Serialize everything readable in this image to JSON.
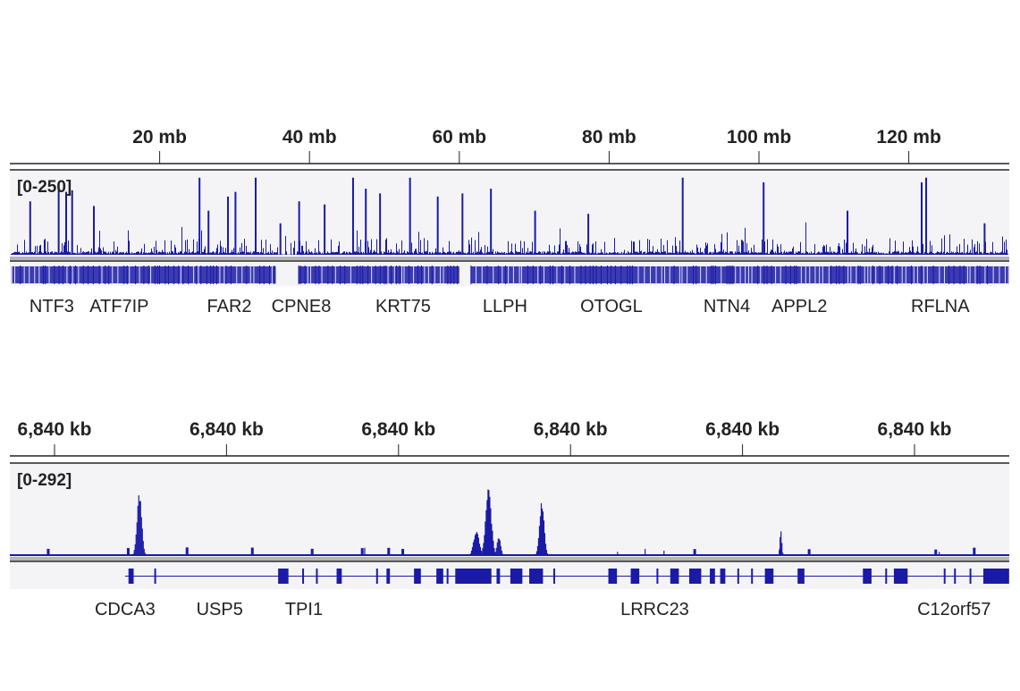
{
  "colors": {
    "signal": "#1a1aa6",
    "track_bg": "#f4f4f7",
    "separator": "#b4b4b4",
    "axis": "#222222"
  },
  "chart_data": [
    {
      "type": "area",
      "panel": "whole-chromosome",
      "x_unit": "mb",
      "xlim": [
        0,
        135
      ],
      "x_ticks": [
        {
          "value": 20,
          "label": "20 mb"
        },
        {
          "value": 40,
          "label": "40 mb"
        },
        {
          "value": 60,
          "label": "60 mb"
        },
        {
          "value": 80,
          "label": "80 mb"
        },
        {
          "value": 100,
          "label": "100 mb"
        },
        {
          "value": 120,
          "label": "120 mb"
        }
      ],
      "data_range_label": "[0-250]",
      "ylim": [
        0,
        250
      ],
      "peaks": [
        {
          "x": 2.6,
          "y": 170
        },
        {
          "x": 6.4,
          "y": 210
        },
        {
          "x": 7.4,
          "y": 200
        },
        {
          "x": 8.2,
          "y": 205
        },
        {
          "x": 11.1,
          "y": 155
        },
        {
          "x": 25.2,
          "y": 245
        },
        {
          "x": 26.4,
          "y": 140
        },
        {
          "x": 29.0,
          "y": 185
        },
        {
          "x": 30.0,
          "y": 200
        },
        {
          "x": 32.7,
          "y": 245
        },
        {
          "x": 36.0,
          "y": 100
        },
        {
          "x": 38.5,
          "y": 170
        },
        {
          "x": 41.9,
          "y": 160
        },
        {
          "x": 45.7,
          "y": 245
        },
        {
          "x": 47.4,
          "y": 210
        },
        {
          "x": 49.3,
          "y": 195
        },
        {
          "x": 53.3,
          "y": 245
        },
        {
          "x": 57.0,
          "y": 185
        },
        {
          "x": 60.3,
          "y": 195
        },
        {
          "x": 64.1,
          "y": 210
        },
        {
          "x": 70.0,
          "y": 140
        },
        {
          "x": 77.1,
          "y": 130
        },
        {
          "x": 89.7,
          "y": 245
        },
        {
          "x": 100.5,
          "y": 230
        },
        {
          "x": 111.7,
          "y": 140
        },
        {
          "x": 121.6,
          "y": 230
        },
        {
          "x": 122.2,
          "y": 245
        },
        {
          "x": 130.0,
          "y": 100
        }
      ],
      "gene_regions": [
        [
          0.2,
          35.5
        ],
        [
          38.5,
          60.0
        ],
        [
          61.5,
          135
        ]
      ],
      "genes": [
        {
          "name": "NTF3",
          "x": 5.6
        },
        {
          "name": "ATF7IP",
          "x": 14.6
        },
        {
          "name": "FAR2",
          "x": 29.3
        },
        {
          "name": "CPNE8",
          "x": 38.9
        },
        {
          "name": "KRT75",
          "x": 52.5
        },
        {
          "name": "LLPH",
          "x": 66.1
        },
        {
          "name": "OTOGL",
          "x": 80.3
        },
        {
          "name": "NTN4",
          "x": 95.7
        },
        {
          "name": "APPL2",
          "x": 105.4
        },
        {
          "name": "RFLNA",
          "x": 124.2
        }
      ]
    },
    {
      "type": "area",
      "panel": "zoomed-locus",
      "x_unit": "tick index",
      "xlim": [
        -0.27,
        5.55
      ],
      "x_ticks": [
        {
          "value": 0,
          "label": "6,840 kb"
        },
        {
          "value": 1,
          "label": "6,840 kb"
        },
        {
          "value": 2,
          "label": "6,840 kb"
        },
        {
          "value": 3,
          "label": "6,840 kb"
        },
        {
          "value": 4,
          "label": "6,840 kb"
        },
        {
          "value": 5,
          "label": "6,840 kb"
        }
      ],
      "data_range_label": "[0-292]",
      "ylim": [
        0,
        292
      ],
      "peaks": [
        {
          "x": 0.49,
          "y": 222,
          "width": 0.05
        },
        {
          "x": 2.52,
          "y": 238,
          "width": 0.06
        },
        {
          "x": 2.45,
          "y": 90,
          "width": 0.06
        },
        {
          "x": 2.58,
          "y": 70,
          "width": 0.04
        },
        {
          "x": 2.83,
          "y": 187,
          "width": 0.05
        },
        {
          "x": 4.22,
          "y": 96,
          "width": 0.02
        },
        {
          "x": 1.8,
          "y": 30,
          "width": 0.01
        },
        {
          "x": 3.27,
          "y": 15,
          "width": 0.01
        },
        {
          "x": 3.43,
          "y": 25,
          "width": 0.01
        },
        {
          "x": 3.54,
          "y": 20,
          "width": 0.01
        },
        {
          "x": 5.14,
          "y": 15,
          "width": 0.01
        }
      ],
      "intron_span": [
        0.41,
        5.55
      ],
      "exons": [
        [
          0.43,
          0.46
        ],
        [
          0.58,
          0.59
        ],
        [
          1.3,
          1.36
        ],
        [
          1.44,
          1.45
        ],
        [
          1.52,
          1.53
        ],
        [
          1.64,
          1.67
        ],
        [
          1.87,
          1.88
        ],
        [
          1.93,
          1.95
        ],
        [
          2.09,
          2.13
        ],
        [
          2.22,
          2.26
        ],
        [
          2.28,
          2.29
        ],
        [
          2.33,
          2.54
        ],
        [
          2.57,
          2.59
        ],
        [
          2.65,
          2.72
        ],
        [
          2.76,
          2.84
        ],
        [
          2.9,
          2.91
        ],
        [
          3.22,
          3.27
        ],
        [
          3.35,
          3.4
        ],
        [
          3.5,
          3.51
        ],
        [
          3.58,
          3.63
        ],
        [
          3.69,
          3.76
        ],
        [
          3.81,
          3.84
        ],
        [
          3.87,
          3.9
        ],
        [
          3.97,
          3.98
        ],
        [
          4.05,
          4.06
        ],
        [
          4.13,
          4.18
        ],
        [
          4.32,
          4.36
        ],
        [
          4.7,
          4.75
        ],
        [
          4.83,
          4.84
        ],
        [
          4.88,
          4.96
        ],
        [
          5.17,
          5.18
        ],
        [
          5.23,
          5.24
        ],
        [
          5.32,
          5.33
        ],
        [
          5.4,
          5.55
        ]
      ],
      "genes": [
        {
          "name": "CDCA3",
          "x": 0.41
        },
        {
          "name": "USP5",
          "x": 0.96
        },
        {
          "name": "TPI1",
          "x": 1.45
        },
        {
          "name": "LRRC23",
          "x": 3.49
        },
        {
          "name": "C12orf57",
          "x": 5.23
        }
      ]
    }
  ]
}
